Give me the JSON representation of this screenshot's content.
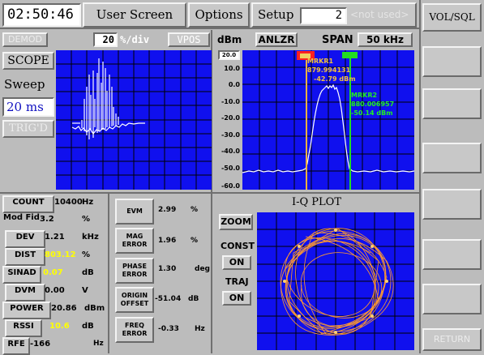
{
  "top": {
    "time": "02:50:46",
    "screen": "User Screen",
    "options": "Options",
    "setup": "Setup",
    "setup_value": "2",
    "not_used": "<not used>"
  },
  "side_buttons": [
    "VOL/SQL",
    "",
    "",
    "",
    "",
    "",
    "",
    "RETURN"
  ],
  "scope": {
    "demod": "DEMOD",
    "volts_div_value": "20",
    "volts_div_unit": "%/div",
    "vpos": "VPOS",
    "scope_btn": "SCOPE",
    "sweep_label": "Sweep",
    "sweep_value": "20 ms",
    "trig_btn": "TRIG'D"
  },
  "analyzer": {
    "unit": "dBm",
    "mode": "ANLZR",
    "span_label": "SPAN",
    "span_value": "50 kHz",
    "ref_box": "20.0",
    "y_ticks": [
      "10.0",
      "0.0",
      "-10.0",
      "-20.0",
      "-30.0",
      "-40.0",
      "-50.0",
      "-60.0"
    ],
    "marker1": {
      "name": "MRKR1",
      "freq": "879.994131",
      "level": "-42.79 dBm"
    },
    "marker2": {
      "name": "MRKR2",
      "freq": "880.006957",
      "level": "-50.14 dBm"
    }
  },
  "measurements": [
    {
      "label": "COUNT",
      "value": "10400",
      "unit": "Hz"
    },
    {
      "label": "Mod Fid",
      "value": "3.2",
      "unit": "%"
    },
    {
      "label": "DEV",
      "value": "1.21",
      "unit": "kHz"
    },
    {
      "label": "DIST",
      "value": "803.12",
      "unit": "%",
      "value_color": "#ffff00"
    },
    {
      "label": "SINAD",
      "value": "0.07",
      "unit": "dB",
      "value_color": "#ffff00"
    },
    {
      "label": "DVM",
      "value": "0.00",
      "unit": "V"
    },
    {
      "label": "POWER",
      "value": "20.86",
      "unit": "dBm"
    },
    {
      "label": "RSSI",
      "value": "10.6",
      "unit": "dB",
      "value_color": "#ffff00"
    },
    {
      "label": "RFE",
      "value": "-166",
      "unit": "Hz"
    }
  ],
  "errors": [
    {
      "label": "EVM",
      "value": "2.99",
      "unit": "%"
    },
    {
      "label": "MAG ERROR",
      "value": "1.96",
      "unit": "%"
    },
    {
      "label": "PHASE ERROR",
      "value": "1.30",
      "unit": "deg"
    },
    {
      "label": "ORIGIN OFFSET",
      "value": "-51.04",
      "unit": "dB"
    },
    {
      "label": "FREQ ERROR",
      "value": "-0.33",
      "unit": "Hz"
    }
  ],
  "iq": {
    "title": "I-Q PLOT",
    "zoom": "ZOOM",
    "const_label": "CONST",
    "const_value": "ON",
    "traj_label": "TRAJ",
    "traj_value": "ON"
  },
  "colors": {
    "plot_bg": "#1010ee",
    "panel": "#bcbcbc",
    "marker1": "#f0b040",
    "marker2": "#22dd22",
    "iq_trace": "#ff9a30"
  }
}
